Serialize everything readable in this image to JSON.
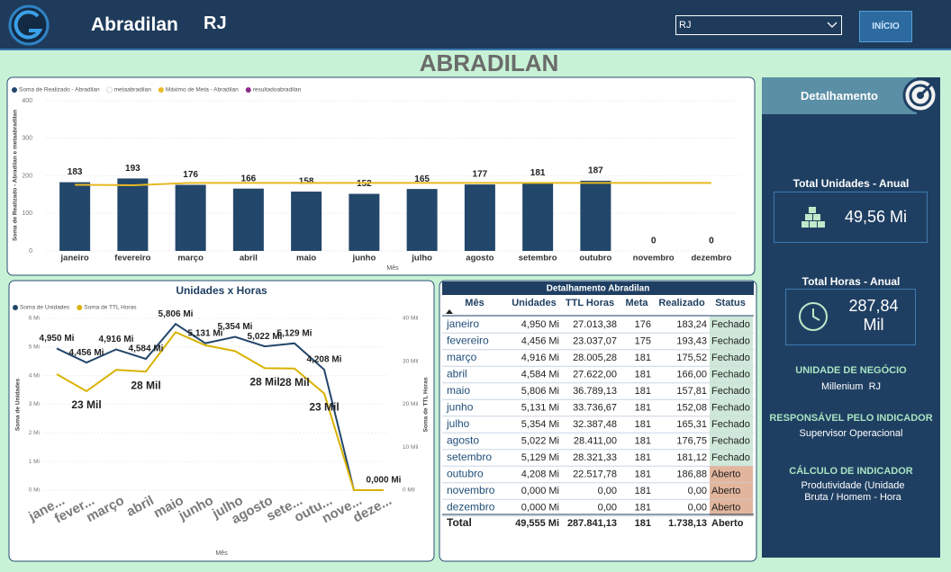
{
  "header": {
    "title": "Abradilan",
    "region": "RJ",
    "filter_value": "RJ",
    "button": "INÍCIO"
  },
  "page_title": "ABRADILAN",
  "chart_data": [
    {
      "type": "bar",
      "y_label": "Soma de Realizado - Abradilan e metaabradilan",
      "x_label": "Mês",
      "categories": [
        "janeiro",
        "fevereiro",
        "março",
        "abril",
        "maio",
        "junho",
        "julho",
        "agosto",
        "setembro",
        "outubro",
        "novembro",
        "dezembro"
      ],
      "series": [
        {
          "name": "Soma de Realizado - Abradilan",
          "color": "#23466b",
          "values": [
            183,
            193,
            176,
            166,
            158,
            152,
            165,
            177,
            181,
            187,
            0,
            0
          ]
        },
        {
          "name": "metaabradilan",
          "color": "#ffffff"
        },
        {
          "name": "Máximo de Meta - Abradilan",
          "color": "#e8b923",
          "type": "line",
          "values": [
            176,
            175,
            181,
            181,
            181,
            181,
            181,
            181,
            181,
            181,
            181,
            181
          ]
        },
        {
          "name": "resultadoabradilan",
          "color": "#8e2a8e"
        }
      ],
      "ylim": [
        0,
        400
      ],
      "yticks": [
        0,
        100,
        200,
        300,
        400
      ],
      "grid": true
    },
    {
      "type": "line",
      "title": "Unidades x Horas",
      "x_label": "Mês",
      "y_label": "Soma de Unidades",
      "y2_label": "Soma de TTL Horas",
      "categories": [
        "jane...",
        "fever...",
        "março",
        "abril",
        "maio",
        "junho",
        "julho",
        "agosto",
        "sete...",
        "outu...",
        "nove...",
        "deze..."
      ],
      "series": [
        {
          "name": "Soma de Unidades",
          "color": "#23466b",
          "values": [
            4.95,
            4.456,
            4.916,
            4.584,
            5.806,
            5.131,
            5.354,
            5.022,
            5.129,
            4.208,
            0,
            0
          ],
          "value_labels": [
            "4,950 Mi",
            "4,456 Mi",
            "4,916 Mi",
            "4,584 Mi",
            "5,806 Mi",
            "5,131 Mi",
            "5,354 Mi",
            "5,022 Mi",
            "5,129 Mi",
            "4,208 Mi",
            null,
            "0,000 Mi"
          ]
        },
        {
          "name": "Soma de TTL Horas",
          "color": "#d9b200",
          "axis": "y2",
          "values": [
            27.013,
            23.037,
            28.005,
            27.622,
            36.789,
            33.737,
            32.387,
            28.411,
            28.321,
            22.518,
            0,
            0
          ],
          "value_labels": [
            null,
            "23 Mil",
            null,
            "28 Mil",
            null,
            null,
            null,
            "28 Mil",
            "28 Mil",
            "23 Mil",
            null,
            null
          ]
        }
      ],
      "ylim": [
        0,
        6
      ],
      "yticks": [
        {
          "value": 0,
          "label": "0 Mi"
        },
        {
          "value": 1,
          "label": "1 Mi"
        },
        {
          "value": 2,
          "label": "2 Mi"
        },
        {
          "value": 3,
          "label": "3 Mi"
        },
        {
          "value": 4,
          "label": "4 Mi"
        },
        {
          "value": 5,
          "label": "5 Mi"
        },
        {
          "value": 6,
          "label": "6 Mi"
        }
      ],
      "y2lim": [
        0,
        40
      ],
      "y2ticks": [
        {
          "value": 0,
          "label": "0 Mil"
        },
        {
          "value": 10,
          "label": "10 Mil"
        },
        {
          "value": 20,
          "label": "20 Mil"
        },
        {
          "value": 30,
          "label": "30 Mil"
        },
        {
          "value": 40,
          "label": "40 Mil"
        }
      ],
      "grid": true
    }
  ],
  "table": {
    "title": "Detalhamento Abradilan",
    "columns": [
      "Mês",
      "Unidades",
      "TTL Horas",
      "Meta",
      "Realizado",
      "Status"
    ],
    "rows": [
      [
        "janeiro",
        "4,950 Mi",
        "27.013,38",
        "176",
        "183,24",
        "Fechado"
      ],
      [
        "fevereiro",
        "4,456 Mi",
        "23.037,07",
        "175",
        "193,43",
        "Fechado"
      ],
      [
        "março",
        "4,916 Mi",
        "28.005,28",
        "181",
        "175,52",
        "Fechado"
      ],
      [
        "abril",
        "4,584 Mi",
        "27.622,00",
        "181",
        "166,00",
        "Fechado"
      ],
      [
        "maio",
        "5,806 Mi",
        "36.789,13",
        "181",
        "157,81",
        "Fechado"
      ],
      [
        "junho",
        "5,131 Mi",
        "33.736,67",
        "181",
        "152,08",
        "Fechado"
      ],
      [
        "julho",
        "5,354 Mi",
        "32.387,48",
        "181",
        "165,31",
        "Fechado"
      ],
      [
        "agosto",
        "5,022 Mi",
        "28.411,00",
        "181",
        "176,75",
        "Fechado"
      ],
      [
        "setembro",
        "5,129 Mi",
        "28.321,33",
        "181",
        "181,12",
        "Fechado"
      ],
      [
        "outubro",
        "4,208 Mi",
        "22.517,78",
        "181",
        "186,88",
        "Aberto"
      ],
      [
        "novembro",
        "0,000 Mi",
        "0,00",
        "181",
        "0,00",
        "Aberto"
      ],
      [
        "dezembro",
        "0,000 Mi",
        "0,00",
        "181",
        "0,00",
        "Aberto"
      ]
    ],
    "status_fill": [
      "#cfe8d9",
      "#cfe8d9",
      "#cfe8d9",
      "#cfe8d9",
      "#cfe8d9",
      "#cfe8d9",
      "#cfe8d9",
      "#cfe8d9",
      "#cfe8d9",
      "#e2b59d",
      "#e2b59d",
      "#e2b59d"
    ],
    "total": [
      "Total",
      "49,555 Mi",
      "287.841,13",
      "181",
      "1.738,13",
      "Aberto"
    ]
  },
  "side_panel": {
    "title": "Detalhamento",
    "cards": [
      {
        "title": "Total Unidades - Anual",
        "value": "49,56 Mi"
      },
      {
        "title": "Total Horas - Anual",
        "value": "287,84 Mil"
      }
    ],
    "sections": [
      {
        "title": "UNIDADE DE NEGÓCIO",
        "lines": [
          "Millenium",
          "RJ"
        ]
      },
      {
        "title": "RESPONSÁVEL PELO INDICADOR",
        "lines": [
          "Supervisor Operacional"
        ]
      },
      {
        "title": "CÁLCULO DE INDICADOR",
        "lines": [
          "Produtividade (Unidade Bruta / Homem - Hora"
        ]
      }
    ]
  }
}
